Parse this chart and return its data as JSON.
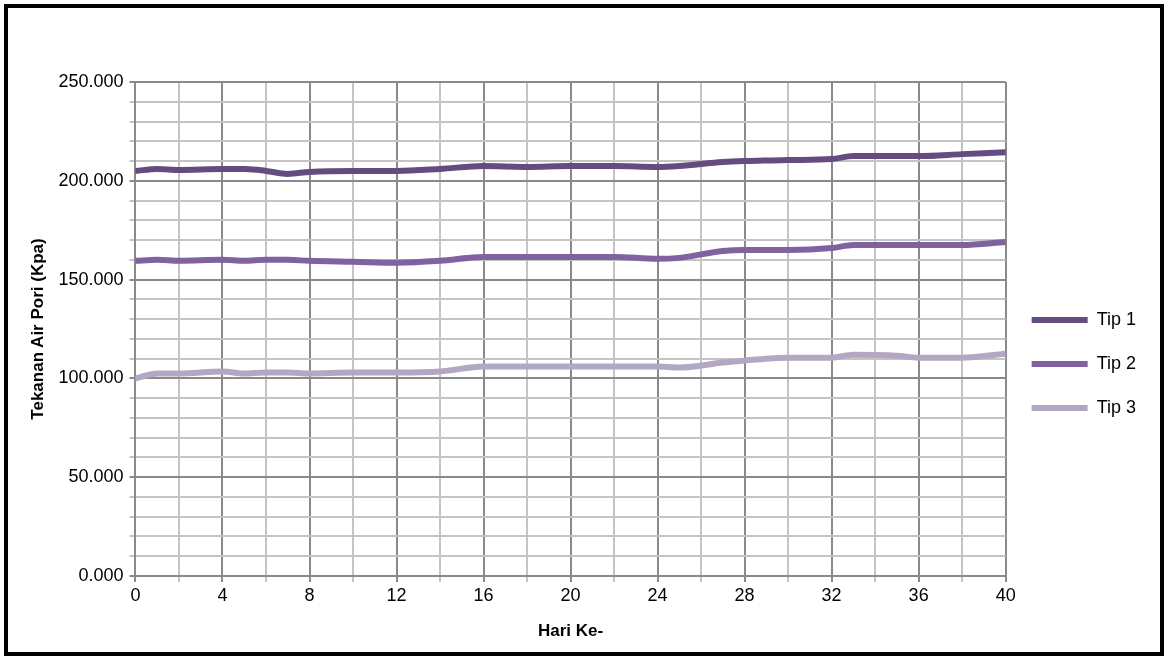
{
  "chart_data": {
    "type": "line",
    "xlabel": "Hari Ke-",
    "ylabel": "Tekanan Air Pori (Kpa)",
    "x": [
      0,
      1,
      2,
      4,
      5,
      6,
      7,
      8,
      10,
      12,
      14,
      16,
      18,
      20,
      22,
      24,
      25,
      27,
      28,
      30,
      32,
      33,
      35,
      36,
      38,
      40
    ],
    "series": [
      {
        "name": "Tip 1",
        "color": "#654c80",
        "values": [
          205,
          206,
          205.5,
          206,
          206,
          205,
          203.5,
          204.5,
          205,
          205,
          206,
          207.5,
          207,
          207.5,
          207.5,
          207,
          207.5,
          209.5,
          210,
          210.5,
          211,
          212.5,
          212.5,
          212.5,
          213.5,
          214.5
        ]
      },
      {
        "name": "Tip 2",
        "color": "#7f62a0",
        "values": [
          159.5,
          160,
          159.5,
          160,
          159.5,
          160,
          160,
          159.5,
          159,
          158.5,
          159.5,
          161.5,
          161.5,
          161.5,
          161.5,
          160.5,
          161,
          164.5,
          165,
          165,
          166,
          167.5,
          167.5,
          167.5,
          167.5,
          169
        ]
      },
      {
        "name": "Tip 3",
        "color": "#b3a8c4",
        "values": [
          100,
          102.5,
          102.5,
          103.5,
          102.5,
          103,
          103,
          102.5,
          103,
          103,
          103.5,
          106,
          106,
          106,
          106,
          106,
          105.5,
          108,
          109,
          110.5,
          110.5,
          112,
          111.5,
          110.5,
          110.5,
          112.5
        ]
      }
    ],
    "xlim": [
      0,
      40
    ],
    "xticks": [
      0,
      {
        "value": 2,
        "label": null
      },
      4,
      {
        "value": 6,
        "label": null
      },
      8,
      {
        "value": 10,
        "label": null
      },
      12,
      {
        "value": 14,
        "label": null
      },
      16,
      {
        "value": 18,
        "label": null
      },
      20,
      {
        "value": 22,
        "label": null
      },
      24,
      {
        "value": 26,
        "label": null
      },
      28,
      {
        "value": 30,
        "label": null
      },
      32,
      {
        "value": 34,
        "label": null
      },
      36,
      {
        "value": 38,
        "label": null
      },
      40
    ],
    "ylim": [
      0,
      250
    ],
    "yticks": [
      {
        "value": 0,
        "label": "0.000"
      },
      {
        "value": 10,
        "label": null
      },
      {
        "value": 20,
        "label": null
      },
      {
        "value": 30,
        "label": null
      },
      {
        "value": 40,
        "label": null
      },
      {
        "value": 50,
        "label": "50.000"
      },
      {
        "value": 60,
        "label": null
      },
      {
        "value": 70,
        "label": null
      },
      {
        "value": 80,
        "label": null
      },
      {
        "value": 90,
        "label": null
      },
      {
        "value": 100,
        "label": "100.000"
      },
      {
        "value": 110,
        "label": null
      },
      {
        "value": 120,
        "label": null
      },
      {
        "value": 130,
        "label": null
      },
      {
        "value": 140,
        "label": null
      },
      {
        "value": 150,
        "label": "150.000"
      },
      {
        "value": 160,
        "label": null
      },
      {
        "value": 170,
        "label": null
      },
      {
        "value": 180,
        "label": null
      },
      {
        "value": 190,
        "label": null
      },
      {
        "value": 200,
        "label": "200.000"
      },
      {
        "value": 210,
        "label": null
      },
      {
        "value": 220,
        "label": null
      },
      {
        "value": 230,
        "label": null
      },
      {
        "value": 240,
        "label": null
      },
      {
        "value": 250,
        "label": "250.000"
      }
    ],
    "grid": true,
    "legend": "right",
    "marker": "none",
    "line_style": "solid"
  }
}
